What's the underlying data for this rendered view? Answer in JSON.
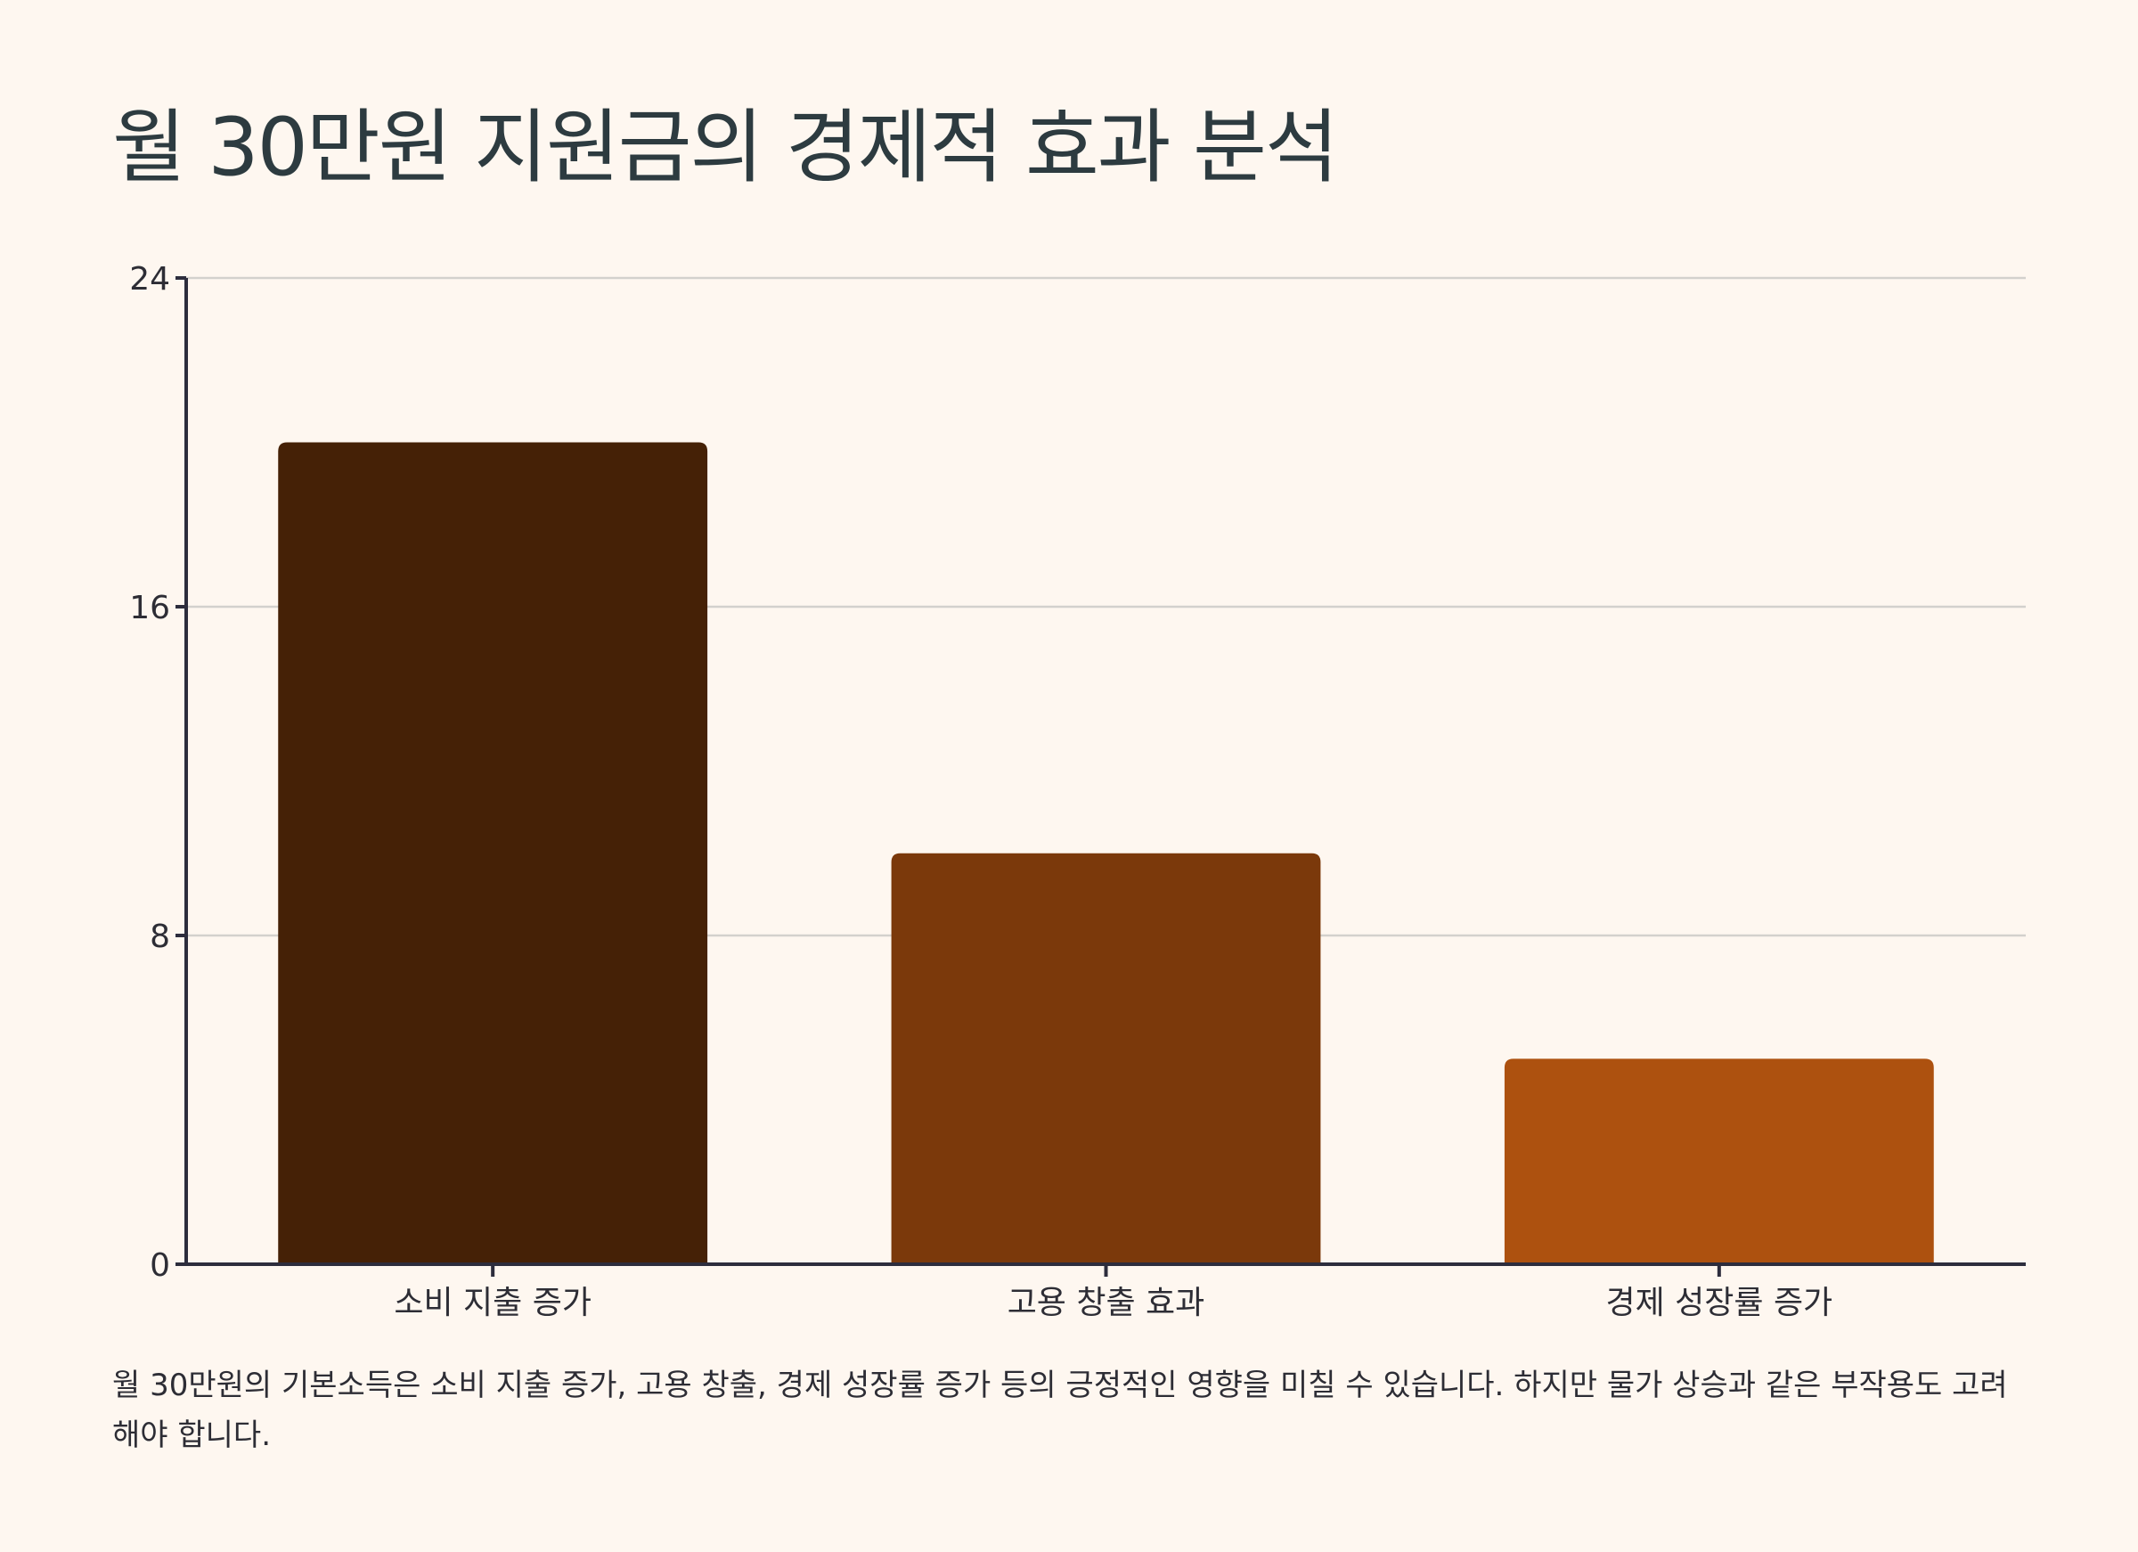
{
  "title": "월 30만원 지원금의 경제적 효과 분석",
  "caption": "월 30만원의 기본소득은 소비 지출 증가, 고용 창출, 경제 성장률 증가 등의 긍정적인 영향을 미칠 수 있습니다. 하지만 물가 상승과 같은 부작용도 고려해야 합니다.",
  "chart_data": {
    "type": "bar",
    "categories": [
      "소비 지출 증가",
      "고용 창출 효과",
      "경제 성장률 증가"
    ],
    "values": [
      20,
      10,
      5
    ],
    "colors": [
      "#452106",
      "#7b390b",
      "#ad510f"
    ],
    "ylim": [
      0,
      24
    ],
    "yticks": [
      0,
      8,
      16,
      24
    ],
    "grid": true,
    "axis_color": "#2d2d3d",
    "grid_color": "#d3d1cd"
  }
}
